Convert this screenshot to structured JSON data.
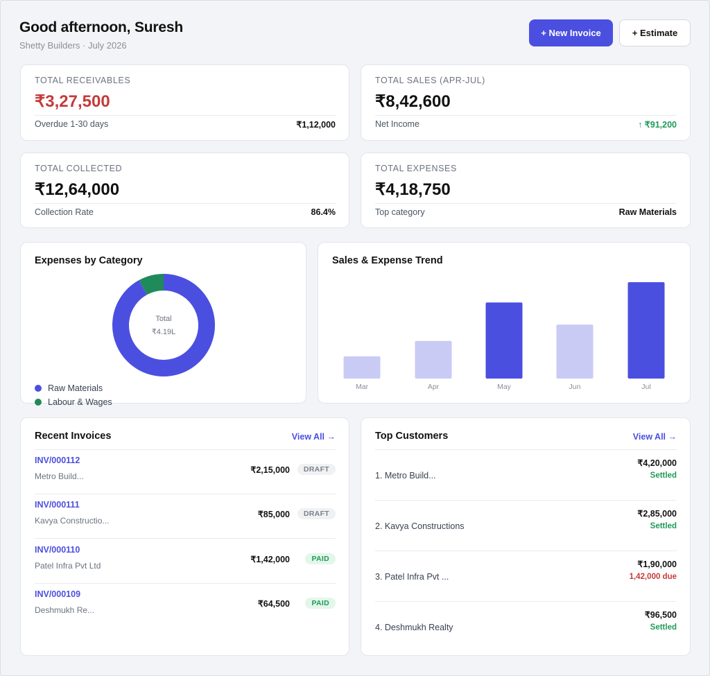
{
  "header": {
    "greeting": "Good afternoon, Suresh",
    "subline": "Shetty Builders · July 2026",
    "new_invoice_label": "+ New Invoice",
    "estimate_label": "+ Estimate"
  },
  "kpis": {
    "receivables": {
      "label": "TOTAL RECEIVABLES",
      "value": "₹3,27,500",
      "foot_label": "Overdue 1-30 days",
      "foot_value": "₹1,12,000",
      "value_color": "#c63a3a"
    },
    "sales": {
      "label": "TOTAL SALES (APR-JUL)",
      "value": "₹8,42,600",
      "foot_label": "Net Income",
      "foot_value": "↑ ₹91,200",
      "foot_color": "#1f9a57"
    },
    "collected": {
      "label": "TOTAL COLLECTED",
      "value": "₹12,64,000",
      "foot_label": "Collection Rate",
      "foot_value": "86.4%"
    },
    "expenses": {
      "label": "TOTAL EXPENSES",
      "value": "₹4,18,750",
      "foot_label": "Top category",
      "foot_value": "Raw Materials"
    }
  },
  "expenses_chart": {
    "title": "Expenses by Category",
    "center_label": "Total",
    "center_value": "₹4.19L",
    "legend": [
      {
        "label": "Raw Materials",
        "color": "#4b4fe0"
      },
      {
        "label": "Labour & Wages",
        "color": "#1f8a5a"
      }
    ]
  },
  "trend_chart": {
    "title": "Sales & Expense Trend"
  },
  "invoices": {
    "title": "Recent Invoices",
    "view_all": "View All →",
    "rows": [
      {
        "id": "INV/000112",
        "customer": "Metro Build...",
        "amount": "₹2,15,000",
        "status": "DRAFT"
      },
      {
        "id": "INV/000111",
        "customer": "Kavya Constructio...",
        "amount": "₹85,000",
        "status": "DRAFT"
      },
      {
        "id": "INV/000110",
        "customer": "Patel Infra Pvt Ltd",
        "amount": "₹1,42,000",
        "status": "PAID"
      },
      {
        "id": "INV/000109",
        "customer": "Deshmukh Re...",
        "amount": "₹64,500",
        "status": "PAID"
      }
    ]
  },
  "customers": {
    "title": "Top Customers",
    "view_all": "View All →",
    "rows": [
      {
        "name": "1. Metro Build...",
        "amount": "₹4,20,000",
        "status": "Settled"
      },
      {
        "name": "2. Kavya Constructions",
        "amount": "₹2,85,000",
        "status": "Settled"
      },
      {
        "name": "3. Patel Infra Pvt ...",
        "amount": "₹1,90,000",
        "status": "1,42,000 due"
      },
      {
        "name": "4. Deshmukh Realty",
        "amount": "₹96,500",
        "status": "Settled"
      }
    ]
  },
  "chart_data": [
    {
      "type": "pie",
      "title": "Expenses by Category",
      "categories": [
        "Raw Materials",
        "Labour & Wages"
      ],
      "values": [
        92,
        8
      ],
      "colors": [
        "#4b4fe0",
        "#1f8a5a"
      ]
    },
    {
      "type": "bar",
      "title": "Sales & Expense Trend",
      "categories": [
        "Mar",
        "Apr",
        "May",
        "Jun",
        "Jul"
      ],
      "values": [
        23,
        39,
        79,
        56,
        100
      ],
      "highlighted": [
        false,
        false,
        true,
        false,
        true
      ],
      "colors": {
        "normal": "#c9cbf5",
        "highlight": "#4b4fe0"
      },
      "ylim": [
        0,
        100
      ]
    }
  ]
}
